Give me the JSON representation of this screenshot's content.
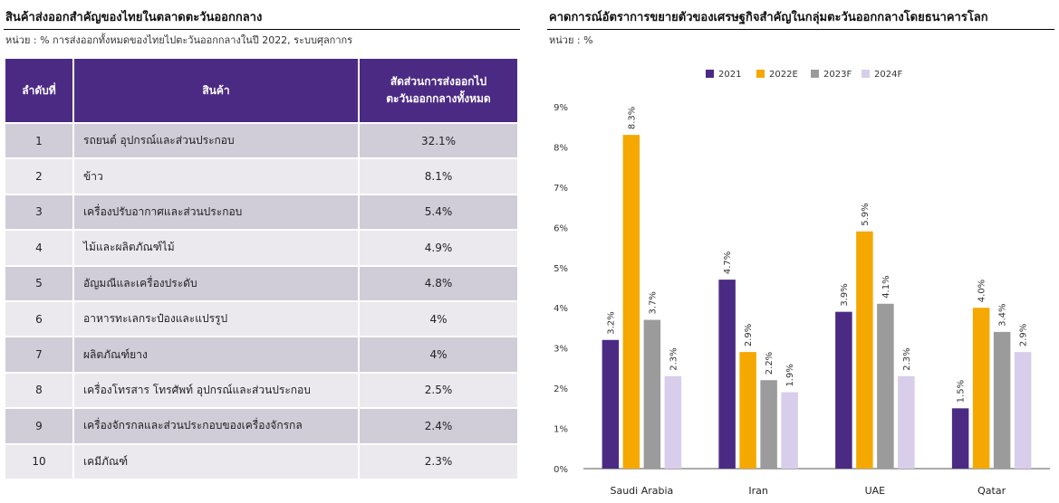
{
  "left": {
    "title": "สินค้าส่งออกสำคัญของไทยในตลาดตะวันออกกลาง",
    "unit": "หน่วย : % การส่งออกทั้งหมดของไทยไปตะวันออกกลางในปี 2022, ระบบศุลกากร",
    "headers": {
      "rank": "ลำดับที่",
      "item": "สินค้า",
      "share_line1": "สัดส่วนการส่งออกไป",
      "share_line2": "ตะวันออกกลางทั้งหมด"
    },
    "rows": [
      {
        "rank": "1",
        "item": "รถยนต์ อุปกรณ์และส่วนประกอบ",
        "share": "32.1%"
      },
      {
        "rank": "2",
        "item": "ข้าว",
        "share": "8.1%"
      },
      {
        "rank": "3",
        "item": "เครื่องปรับอากาศและส่วนประกอบ",
        "share": "5.4%"
      },
      {
        "rank": "4",
        "item": "ไม้และผลิตภัณฑ์ไม้",
        "share": "4.9%"
      },
      {
        "rank": "5",
        "item": "อัญมณีและเครื่องประดับ",
        "share": "4.8%"
      },
      {
        "rank": "6",
        "item": "อาหารทะเลกระป๋องและแปรรูป",
        "share": "4%"
      },
      {
        "rank": "7",
        "item": "ผลิตภัณฑ์ยาง",
        "share": "4%"
      },
      {
        "rank": "8",
        "item": "เครื่องโทรสาร โทรศัพท์ อุปกรณ์และส่วนประกอบ",
        "share": "2.5%"
      },
      {
        "rank": "9",
        "item": "เครื่องจักรกลและส่วนประกอบของเครื่องจักรกล",
        "share": "2.4%"
      },
      {
        "rank": "10",
        "item": "เคมีภัณฑ์",
        "share": "2.3%"
      }
    ]
  },
  "right": {
    "title": "คาดการณ์อัตราการขยายตัวของเศรษฐกิจสำคัญในกลุ่มตะวันออกกลางโดยธนาคารโลก",
    "unit": "หน่วย : %"
  },
  "chart_data": {
    "type": "bar",
    "categories": [
      "Saudi Arabia",
      "Iran",
      "UAE",
      "Qatar"
    ],
    "series": [
      {
        "name": "2021",
        "color": "#4b2a84",
        "values": [
          3.2,
          4.7,
          3.9,
          1.5
        ],
        "labels": [
          "3.2%",
          "4.7%",
          "3.9%",
          "1.5%"
        ]
      },
      {
        "name": "2022E",
        "color": "#f5a800",
        "values": [
          8.3,
          2.9,
          5.9,
          4.0
        ],
        "labels": [
          "8.3%",
          "2.9%",
          "5.9%",
          "4.0%"
        ]
      },
      {
        "name": "2023F",
        "color": "#9b9b9b",
        "values": [
          3.7,
          2.2,
          4.1,
          3.4
        ],
        "labels": [
          "3.7%",
          "2.2%",
          "4.1%",
          "3.4%"
        ]
      },
      {
        "name": "2024F",
        "color": "#d8cdea",
        "values": [
          2.3,
          1.9,
          2.3,
          2.9
        ],
        "labels": [
          "2.3%",
          "1.9%",
          "2.3%",
          "2.9%"
        ]
      }
    ],
    "yticks": [
      "0%",
      "1%",
      "2%",
      "3%",
      "4%",
      "5%",
      "6%",
      "7%",
      "8%",
      "9%"
    ],
    "ylim": [
      0,
      9
    ],
    "legend_position": "top-center",
    "grid": false
  }
}
